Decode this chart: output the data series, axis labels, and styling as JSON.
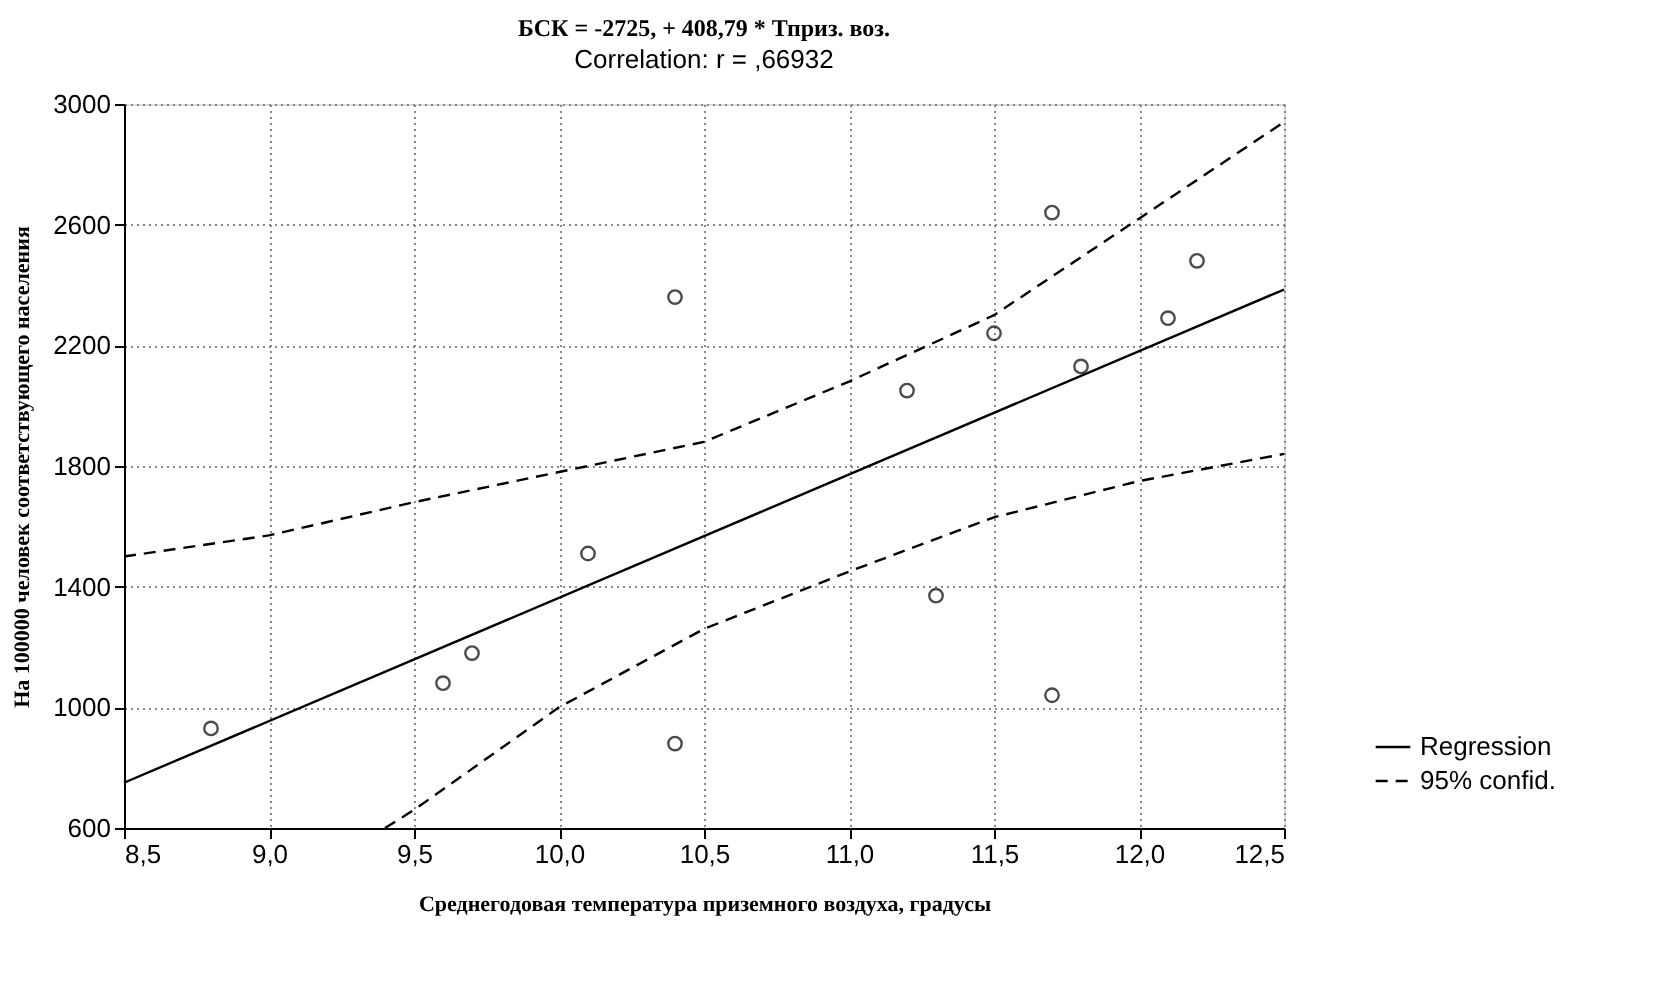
{
  "chart_data": {
    "type": "scatter",
    "title": "БСК = -2725, + 408,79 * Тприз. воз.",
    "subtitle": "Correlation: r = ,66932",
    "xlabel": "Среднегодовая температура приземного воздуха, градусы",
    "ylabel": "На 100000 человек соответствующего населения",
    "series": [
      {
        "color": "#000000",
        "marker": "circle",
        "x": [
          8.8,
          9.6,
          9.7,
          10.1,
          10.4,
          10.4,
          11.2,
          11.3,
          11.5,
          11.7,
          11.7,
          11.8,
          12.1,
          12.2
        ],
        "values": [
          930,
          1080,
          1180,
          1510,
          2360,
          880,
          2050,
          1370,
          2240,
          2640,
          1040,
          2130,
          2290,
          2480
        ]
      },
      {
        "type": "line",
        "name": "Regression",
        "color": "#000000",
        "line_style": "solid",
        "x": [
          8.5,
          12.5
        ],
        "values": [
          750,
          2385
        ]
      },
      {
        "type": "line",
        "name": "95% confid.",
        "color": "#000000",
        "line_style": "dashed",
        "x": [
          8.5,
          9.0,
          9.5,
          10.0,
          10.5,
          11.0,
          11.5,
          12.0,
          12.5
        ],
        "values": [
          1500,
          1570,
          1680,
          1780,
          1880,
          2080,
          2300,
          2620,
          2940
        ]
      },
      {
        "type": "line",
        "color": "#000000",
        "line_style": "dashed",
        "x": [
          9.4,
          9.5,
          10.0,
          10.5,
          11.0,
          11.5,
          12.0,
          12.5
        ],
        "values": [
          600,
          660,
          1000,
          1260,
          1450,
          1630,
          1750,
          1840
        ]
      }
    ],
    "xlim": [
      8.5,
      12.5
    ],
    "xticks": [
      {
        "value": 8.5,
        "label": "8,5"
      },
      {
        "value": 9.0,
        "label": "9,0"
      },
      {
        "value": 9.5,
        "label": "9,5"
      },
      {
        "value": 10.0,
        "label": "10,0"
      },
      {
        "value": 10.5,
        "label": "10,5"
      },
      {
        "value": 11.0,
        "label": "11,0"
      },
      {
        "value": 11.5,
        "label": "11,5"
      },
      {
        "value": 12.0,
        "label": "12,0"
      },
      {
        "value": 12.5,
        "label": "12,5"
      }
    ],
    "ylim": [
      600,
      3000
    ],
    "yticks": [
      600,
      1000,
      1400,
      1800,
      2200,
      2600,
      3000
    ],
    "grid": true,
    "legend": "bottom right"
  }
}
